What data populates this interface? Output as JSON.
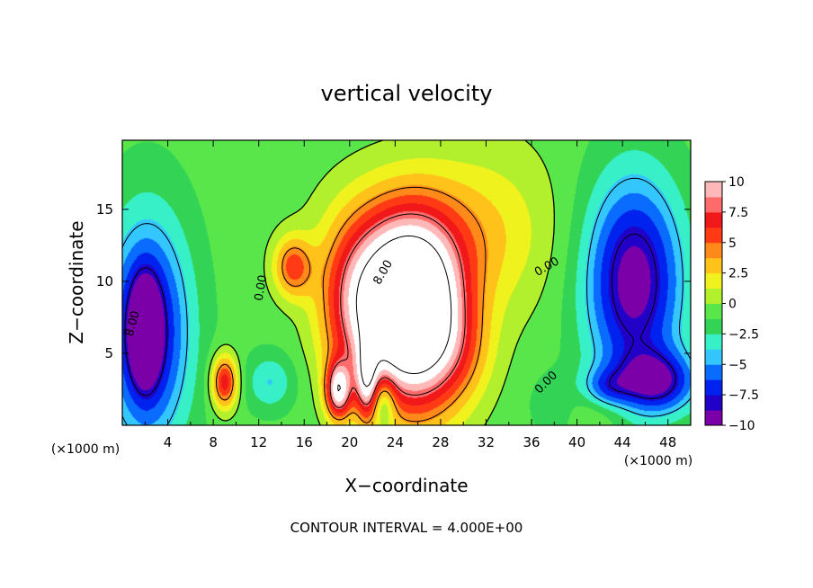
{
  "chart_data": {
    "type": "heatmap",
    "title": "vertical velocity",
    "xlabel": "X−coordinate",
    "ylabel": "Z−coordinate",
    "x_unit_label": "(×1000 m)",
    "y_unit_label": "(×1000 m)",
    "x_ticks": [
      "4",
      "8",
      "12",
      "16",
      "20",
      "24",
      "28",
      "32",
      "36",
      "40",
      "44",
      "48"
    ],
    "y_ticks": [
      "5",
      "10",
      "15"
    ],
    "xlim": [
      0,
      50
    ],
    "ylim": [
      0,
      19.8
    ],
    "colorbar": {
      "ticks": [
        "10",
        "7.5",
        "5",
        "2.5",
        "0",
        "−2.5",
        "−5",
        "−7.5",
        "−10"
      ],
      "range": [
        -10,
        10
      ],
      "colors": [
        "#7b00a8",
        "#2100c8",
        "#0022ee",
        "#0a6bff",
        "#33c6ff",
        "#38f0c8",
        "#33d455",
        "#58e64a",
        "#b2ef2d",
        "#f0f21e",
        "#ffc21a",
        "#ff8a1a",
        "#ff3a14",
        "#f01818",
        "#ff6b6b",
        "#ffb8b8"
      ]
    },
    "contour_interval_text": "CONTOUR INTERVAL = 4.000E+00",
    "contour_labels": [
      "0.00",
      "0.00",
      "0.00",
      "8.00",
      "8.00"
    ],
    "features": [
      {
        "kind": "updraft",
        "x": 26,
        "z": 7.5,
        "peak_w": 16
      },
      {
        "kind": "updraft",
        "x": 19,
        "z": 2.4,
        "peak_w": 10
      },
      {
        "kind": "updraft",
        "x": 9,
        "z": 3,
        "peak_w": 8
      },
      {
        "kind": "updraft",
        "x": 15,
        "z": 11,
        "peak_w": 6
      },
      {
        "kind": "downdraft",
        "x": 2.2,
        "z": 6.5,
        "peak_w": -14
      },
      {
        "kind": "downdraft",
        "x": 45,
        "z": 10,
        "peak_w": -9
      },
      {
        "kind": "downdraft",
        "x": 47,
        "z": 3,
        "peak_w": -7
      }
    ]
  }
}
